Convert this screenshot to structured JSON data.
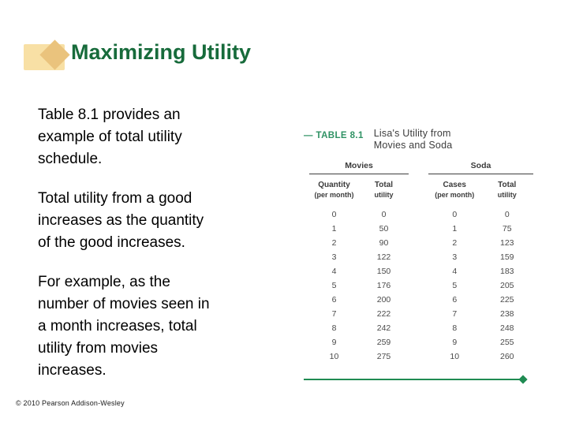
{
  "slide": {
    "title": "Maximizing Utility",
    "footer": "© 2010 Pearson Addison-Wesley",
    "paragraphs": [
      [
        "Table 8.1 provides an",
        "example of total utility",
        "schedule."
      ],
      [
        "Total utility from a good",
        "increases as the quantity",
        "of the good increases."
      ],
      [
        "For example, as the",
        "number of movies seen in",
        "a month increases, total",
        "utility from movies",
        "increases."
      ]
    ]
  },
  "colors": {
    "title_green": "#176b3b",
    "label_green": "#2f9264",
    "line_green": "#1f8b52",
    "icon_rect": "#f8e0a5",
    "icon_diamond": "#eac37d"
  },
  "chart_data": {
    "type": "table",
    "label_dash": "—",
    "label": "TABLE 8.1",
    "title_lines": [
      "Lisa's Utility from",
      "Movies and Soda"
    ],
    "groups": [
      {
        "name": "Movies",
        "columns": [
          [
            "Quantity",
            "(per month)"
          ],
          [
            "Total",
            "utility"
          ]
        ],
        "rows": [
          [
            0,
            0
          ],
          [
            1,
            50
          ],
          [
            2,
            90
          ],
          [
            3,
            122
          ],
          [
            4,
            150
          ],
          [
            5,
            176
          ],
          [
            6,
            200
          ],
          [
            7,
            222
          ],
          [
            8,
            242
          ],
          [
            9,
            259
          ],
          [
            10,
            275
          ]
        ]
      },
      {
        "name": "Soda",
        "columns": [
          [
            "Cases",
            "(per month)"
          ],
          [
            "Total",
            "utility"
          ]
        ],
        "rows": [
          [
            0,
            0
          ],
          [
            1,
            75
          ],
          [
            2,
            123
          ],
          [
            3,
            159
          ],
          [
            4,
            183
          ],
          [
            5,
            205
          ],
          [
            6,
            225
          ],
          [
            7,
            238
          ],
          [
            8,
            248
          ],
          [
            9,
            255
          ],
          [
            10,
            260
          ]
        ]
      }
    ]
  }
}
